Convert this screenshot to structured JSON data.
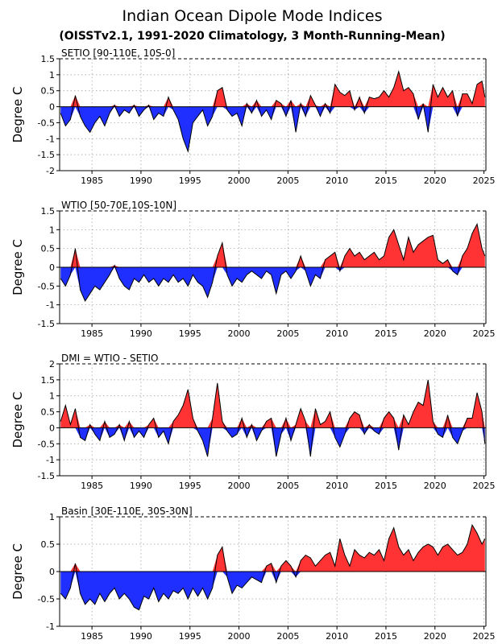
{
  "figure": {
    "title": "Indian Ocean Dipole Mode Indices",
    "subtitle": "(OISSTv2.1, 1991-2020 Climatology, 3 Month-Running-Mean)"
  },
  "colors": {
    "positive": "#ff3333",
    "negative": "#1f2fff",
    "line": "#000000",
    "grid": "#999999"
  },
  "chart_data": [
    {
      "type": "area",
      "title": "SETIO [90-110E, 10S-0]",
      "ylabel": "Degree C",
      "xlim": [
        1981.7,
        2025.2
      ],
      "ylim": [
        -2,
        1.5
      ],
      "yticks": [
        -2,
        -1.5,
        -1,
        -0.5,
        0,
        0.5,
        1,
        1.5
      ],
      "xticks": [
        1985,
        1990,
        1995,
        2000,
        2005,
        2010,
        2015,
        2020,
        2025
      ],
      "x": [
        1981.8,
        1982.3,
        1982.8,
        1983.3,
        1983.8,
        1984.3,
        1984.8,
        1985.3,
        1985.8,
        1986.3,
        1986.8,
        1987.3,
        1987.8,
        1988.3,
        1988.8,
        1989.3,
        1989.8,
        1990.3,
        1990.8,
        1991.3,
        1991.8,
        1992.3,
        1992.8,
        1993.3,
        1993.8,
        1994.3,
        1994.8,
        1995.3,
        1995.8,
        1996.3,
        1996.8,
        1997.3,
        1997.8,
        1998.3,
        1998.8,
        1999.3,
        1999.8,
        2000.3,
        2000.8,
        2001.3,
        2001.8,
        2002.3,
        2002.8,
        2003.3,
        2003.8,
        2004.3,
        2004.8,
        2005.3,
        2005.8,
        2006.3,
        2006.8,
        2007.3,
        2007.8,
        2008.3,
        2008.8,
        2009.3,
        2009.8,
        2010.3,
        2010.8,
        2011.3,
        2011.8,
        2012.3,
        2012.8,
        2013.3,
        2013.8,
        2014.3,
        2014.8,
        2015.3,
        2015.8,
        2016.3,
        2016.8,
        2017.3,
        2017.8,
        2018.3,
        2018.8,
        2019.3,
        2019.8,
        2020.3,
        2020.8,
        2021.3,
        2021.8,
        2022.3,
        2022.8,
        2023.3,
        2023.8,
        2024.3,
        2024.8,
        2025.1
      ],
      "values": [
        -0.2,
        -0.6,
        -0.4,
        0.35,
        -0.3,
        -0.6,
        -0.8,
        -0.5,
        -0.3,
        -0.6,
        -0.2,
        0.05,
        -0.3,
        -0.1,
        -0.2,
        0.05,
        -0.3,
        -0.1,
        0.05,
        -0.4,
        -0.2,
        -0.3,
        0.3,
        -0.1,
        -0.4,
        -1.0,
        -1.4,
        -0.5,
        -0.3,
        -0.1,
        -0.6,
        -0.3,
        0.5,
        0.6,
        -0.1,
        -0.3,
        -0.2,
        -0.6,
        0.1,
        -0.2,
        0.2,
        -0.3,
        -0.1,
        -0.4,
        0.2,
        0.1,
        -0.3,
        0.2,
        -0.8,
        0.1,
        -0.3,
        0.35,
        0.05,
        -0.3,
        0.1,
        -0.2,
        0.7,
        0.45,
        0.35,
        0.5,
        -0.1,
        0.3,
        -0.2,
        0.3,
        0.25,
        0.3,
        0.5,
        0.3,
        0.6,
        1.1,
        0.5,
        0.6,
        0.4,
        -0.4,
        0.1,
        -0.8,
        0.7,
        0.3,
        0.6,
        0.3,
        0.5,
        -0.3,
        0.4,
        0.4,
        0.1,
        0.7,
        0.8,
        0.3
      ]
    },
    {
      "type": "area",
      "title": "WTIO [50-70E,10S-10N]",
      "ylabel": "Degree C",
      "xlim": [
        1981.7,
        2025.2
      ],
      "ylim": [
        -1.5,
        1.5
      ],
      "yticks": [
        -1.5,
        -1,
        -0.5,
        0,
        0.5,
        1,
        1.5
      ],
      "xticks": [
        1985,
        1990,
        1995,
        2000,
        2005,
        2010,
        2015,
        2020,
        2025
      ],
      "x": [
        1981.8,
        1982.3,
        1982.8,
        1983.3,
        1983.8,
        1984.3,
        1984.8,
        1985.3,
        1985.8,
        1986.3,
        1986.8,
        1987.3,
        1987.8,
        1988.3,
        1988.8,
        1989.3,
        1989.8,
        1990.3,
        1990.8,
        1991.3,
        1991.8,
        1992.3,
        1992.8,
        1993.3,
        1993.8,
        1994.3,
        1994.8,
        1995.3,
        1995.8,
        1996.3,
        1996.8,
        1997.3,
        1997.8,
        1998.3,
        1998.8,
        1999.3,
        1999.8,
        2000.3,
        2000.8,
        2001.3,
        2001.8,
        2002.3,
        2002.8,
        2003.3,
        2003.8,
        2004.3,
        2004.8,
        2005.3,
        2005.8,
        2006.3,
        2006.8,
        2007.3,
        2007.8,
        2008.3,
        2008.8,
        2009.3,
        2009.8,
        2010.3,
        2010.8,
        2011.3,
        2011.8,
        2012.3,
        2012.8,
        2013.3,
        2013.8,
        2014.3,
        2014.8,
        2015.3,
        2015.8,
        2016.3,
        2016.8,
        2017.3,
        2017.8,
        2018.3,
        2018.8,
        2019.3,
        2019.8,
        2020.3,
        2020.8,
        2021.3,
        2021.8,
        2022.3,
        2022.8,
        2023.3,
        2023.8,
        2024.3,
        2024.8,
        2025.1
      ],
      "values": [
        -0.3,
        -0.5,
        -0.2,
        0.5,
        -0.6,
        -0.9,
        -0.7,
        -0.5,
        -0.6,
        -0.4,
        -0.2,
        0.05,
        -0.3,
        -0.5,
        -0.6,
        -0.3,
        -0.4,
        -0.2,
        -0.4,
        -0.3,
        -0.5,
        -0.3,
        -0.4,
        -0.2,
        -0.4,
        -0.3,
        -0.5,
        -0.2,
        -0.4,
        -0.5,
        -0.8,
        -0.4,
        0.3,
        0.65,
        -0.2,
        -0.5,
        -0.3,
        -0.4,
        -0.2,
        -0.1,
        -0.2,
        -0.3,
        -0.1,
        -0.2,
        -0.7,
        -0.2,
        -0.1,
        -0.3,
        -0.1,
        0.3,
        -0.1,
        -0.5,
        -0.2,
        -0.3,
        0.2,
        0.3,
        0.4,
        -0.1,
        0.3,
        0.5,
        0.3,
        0.4,
        0.2,
        0.3,
        0.4,
        0.2,
        0.3,
        0.8,
        1.0,
        0.6,
        0.2,
        0.8,
        0.4,
        0.6,
        0.7,
        0.8,
        0.85,
        0.2,
        0.1,
        0.2,
        -0.1,
        -0.2,
        0.3,
        0.5,
        0.9,
        1.15,
        0.5,
        0.3
      ]
    },
    {
      "type": "area",
      "title": "DMI = WTIO - SETIO",
      "ylabel": "Degree C",
      "xlim": [
        1981.7,
        2025.2
      ],
      "ylim": [
        -1.5,
        2
      ],
      "yticks": [
        -1.5,
        -1,
        -0.5,
        0,
        0.5,
        1,
        1.5,
        2
      ],
      "xticks": [
        1985,
        1990,
        1995,
        2000,
        2005,
        2010,
        2015,
        2020,
        2025
      ],
      "x": [
        1981.8,
        1982.3,
        1982.8,
        1983.3,
        1983.8,
        1984.3,
        1984.8,
        1985.3,
        1985.8,
        1986.3,
        1986.8,
        1987.3,
        1987.8,
        1988.3,
        1988.8,
        1989.3,
        1989.8,
        1990.3,
        1990.8,
        1991.3,
        1991.8,
        1992.3,
        1992.8,
        1993.3,
        1993.8,
        1994.3,
        1994.8,
        1995.3,
        1995.8,
        1996.3,
        1996.8,
        1997.3,
        1997.8,
        1998.3,
        1998.8,
        1999.3,
        1999.8,
        2000.3,
        2000.8,
        2001.3,
        2001.8,
        2002.3,
        2002.8,
        2003.3,
        2003.8,
        2004.3,
        2004.8,
        2005.3,
        2005.8,
        2006.3,
        2006.8,
        2007.3,
        2007.8,
        2008.3,
        2008.8,
        2009.3,
        2009.8,
        2010.3,
        2010.8,
        2011.3,
        2011.8,
        2012.3,
        2012.8,
        2013.3,
        2013.8,
        2014.3,
        2014.8,
        2015.3,
        2015.8,
        2016.3,
        2016.8,
        2017.3,
        2017.8,
        2018.3,
        2018.8,
        2019.3,
        2019.8,
        2020.3,
        2020.8,
        2021.3,
        2021.8,
        2022.3,
        2022.8,
        2023.3,
        2023.8,
        2024.3,
        2024.8,
        2025.1
      ],
      "values": [
        0.2,
        0.7,
        0.1,
        0.6,
        -0.3,
        -0.4,
        0.1,
        -0.2,
        -0.4,
        0.2,
        -0.3,
        -0.2,
        0.1,
        -0.4,
        0.2,
        -0.3,
        -0.1,
        -0.3,
        0.1,
        0.3,
        -0.3,
        -0.1,
        -0.5,
        0.2,
        0.4,
        0.7,
        1.2,
        0.3,
        -0.1,
        -0.4,
        -0.9,
        0.3,
        1.4,
        0.2,
        -0.1,
        -0.3,
        -0.2,
        0.3,
        -0.3,
        0.1,
        -0.4,
        -0.1,
        0.2,
        0.3,
        -0.9,
        -0.2,
        0.3,
        -0.4,
        0.1,
        0.6,
        0.2,
        -0.9,
        0.6,
        0.1,
        0.2,
        0.5,
        -0.3,
        -0.6,
        -0.2,
        0.3,
        0.5,
        0.4,
        -0.2,
        0.1,
        -0.1,
        -0.2,
        0.3,
        0.5,
        0.3,
        -0.7,
        0.4,
        0.1,
        0.5,
        0.8,
        0.7,
        1.5,
        0.2,
        -0.2,
        -0.3,
        0.4,
        -0.3,
        -0.5,
        -0.1,
        0.3,
        0.3,
        1.1,
        0.5,
        -0.5
      ]
    },
    {
      "type": "area",
      "title": "Basin [30E-110E, 30S-30N]",
      "ylabel": "Degree C",
      "xlim": [
        1981.7,
        2025.2
      ],
      "ylim": [
        -1,
        1
      ],
      "yticks": [
        -1,
        -0.5,
        0,
        0.5,
        1
      ],
      "xticks": [
        1985,
        1990,
        1995,
        2000,
        2005,
        2010,
        2015,
        2020,
        2025
      ],
      "x": [
        1981.8,
        1982.3,
        1982.8,
        1983.3,
        1983.8,
        1984.3,
        1984.8,
        1985.3,
        1985.8,
        1986.3,
        1986.8,
        1987.3,
        1987.8,
        1988.3,
        1988.8,
        1989.3,
        1989.8,
        1990.3,
        1990.8,
        1991.3,
        1991.8,
        1992.3,
        1992.8,
        1993.3,
        1993.8,
        1994.3,
        1994.8,
        1995.3,
        1995.8,
        1996.3,
        1996.8,
        1997.3,
        1997.8,
        1998.3,
        1998.8,
        1999.3,
        1999.8,
        2000.3,
        2000.8,
        2001.3,
        2001.8,
        2002.3,
        2002.8,
        2003.3,
        2003.8,
        2004.3,
        2004.8,
        2005.3,
        2005.8,
        2006.3,
        2006.8,
        2007.3,
        2007.8,
        2008.3,
        2008.8,
        2009.3,
        2009.8,
        2010.3,
        2010.8,
        2011.3,
        2011.8,
        2012.3,
        2012.8,
        2013.3,
        2013.8,
        2014.3,
        2014.8,
        2015.3,
        2015.8,
        2016.3,
        2016.8,
        2017.3,
        2017.8,
        2018.3,
        2018.8,
        2019.3,
        2019.8,
        2020.3,
        2020.8,
        2021.3,
        2021.8,
        2022.3,
        2022.8,
        2023.3,
        2023.8,
        2024.3,
        2024.8,
        2025.1
      ],
      "values": [
        -0.4,
        -0.5,
        -0.3,
        0.15,
        -0.4,
        -0.6,
        -0.5,
        -0.6,
        -0.4,
        -0.55,
        -0.4,
        -0.3,
        -0.5,
        -0.4,
        -0.5,
        -0.65,
        -0.7,
        -0.45,
        -0.5,
        -0.3,
        -0.55,
        -0.4,
        -0.5,
        -0.35,
        -0.4,
        -0.3,
        -0.5,
        -0.3,
        -0.45,
        -0.3,
        -0.5,
        -0.3,
        0.3,
        0.45,
        -0.1,
        -0.4,
        -0.25,
        -0.3,
        -0.2,
        -0.1,
        -0.15,
        -0.2,
        0.1,
        0.15,
        -0.2,
        0.1,
        0.2,
        0.1,
        -0.1,
        0.2,
        0.3,
        0.25,
        0.1,
        0.2,
        0.3,
        0.35,
        0.1,
        0.6,
        0.3,
        0.1,
        0.4,
        0.3,
        0.25,
        0.35,
        0.3,
        0.4,
        0.2,
        0.6,
        0.8,
        0.45,
        0.3,
        0.4,
        0.2,
        0.35,
        0.45,
        0.5,
        0.45,
        0.3,
        0.45,
        0.5,
        0.4,
        0.3,
        0.35,
        0.5,
        0.85,
        0.7,
        0.5,
        0.6
      ]
    }
  ]
}
